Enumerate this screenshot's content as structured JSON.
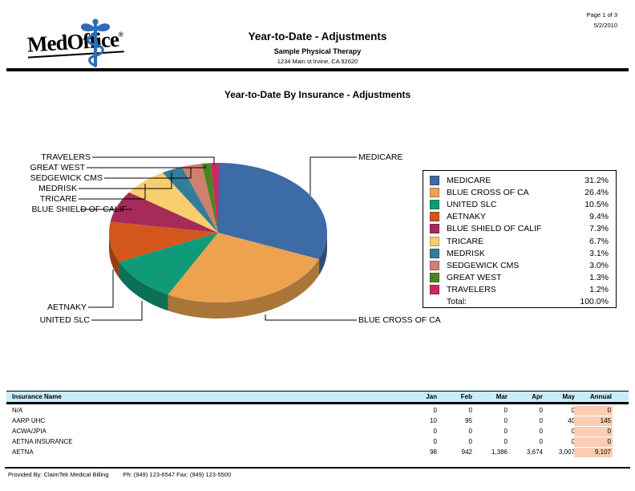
{
  "header": {
    "logo_text": "MedOffice",
    "logo_reg": "®",
    "page_number": "Page 1 of 3",
    "date": "5/2/2010",
    "title": "Year-to-Date - Adjustments",
    "subtitle": "Sample Physical Therapy",
    "address": "1234 Main st Irvine, CA 92620"
  },
  "chart_data": {
    "type": "pie",
    "style": "3d",
    "title": "Year-to-Date By Insurance - Adjustments",
    "legend_position": "right",
    "series": [
      {
        "label": "MEDICARE",
        "value": 31.2,
        "color": "#3D6BA5"
      },
      {
        "label": "BLUE CROSS OF CA",
        "value": 26.4,
        "color": "#ECA24F"
      },
      {
        "label": "UNITED SLC",
        "value": 10.5,
        "color": "#0F9B78"
      },
      {
        "label": "AETNAKY",
        "value": 9.4,
        "color": "#D3561D"
      },
      {
        "label": "BLUE SHIELD OF CALIF",
        "value": 7.3,
        "color": "#A62B58"
      },
      {
        "label": "TRICARE",
        "value": 6.7,
        "color": "#F9CE6C"
      },
      {
        "label": "MEDRISK",
        "value": 3.1,
        "color": "#327D9C"
      },
      {
        "label": "SEDGEWICK CMS",
        "value": 3.0,
        "color": "#CE8070"
      },
      {
        "label": "GREAT WEST",
        "value": 1.3,
        "color": "#4C8520"
      },
      {
        "label": "TRAVELERS",
        "value": 1.2,
        "color": "#CA2A61"
      }
    ],
    "total_label": "Total:",
    "total_display": "100.0%"
  },
  "table": {
    "columns": [
      "Insurance Name",
      "Jan",
      "Feb",
      "Mar",
      "Apr",
      "May",
      "Annual"
    ],
    "rows": [
      {
        "name": "N/A",
        "monthly": [
          "0",
          "0",
          "0",
          "0",
          "0"
        ],
        "annual": "0"
      },
      {
        "name": "AARP UHC",
        "monthly": [
          "10",
          "95",
          "0",
          "0",
          "40"
        ],
        "annual": "145"
      },
      {
        "name": "ACWA/JPIA",
        "monthly": [
          "0",
          "0",
          "0",
          "0",
          "0"
        ],
        "annual": "0"
      },
      {
        "name": "AETNA INSURANCE",
        "monthly": [
          "0",
          "0",
          "0",
          "0",
          "0"
        ],
        "annual": "0"
      },
      {
        "name": "AETNA",
        "monthly": [
          "98",
          "942",
          "1,386",
          "3,674",
          "3,007"
        ],
        "annual": "9,107"
      }
    ],
    "header_bg_color": "#C7EDF8",
    "annual_highlight_color": "#F9CDB2"
  },
  "footer": {
    "provided_by": "Provided By: ClaimTek Medical Billing",
    "phone": "Ph: (949) 123-6547 Fax: (949) 123-5500"
  }
}
